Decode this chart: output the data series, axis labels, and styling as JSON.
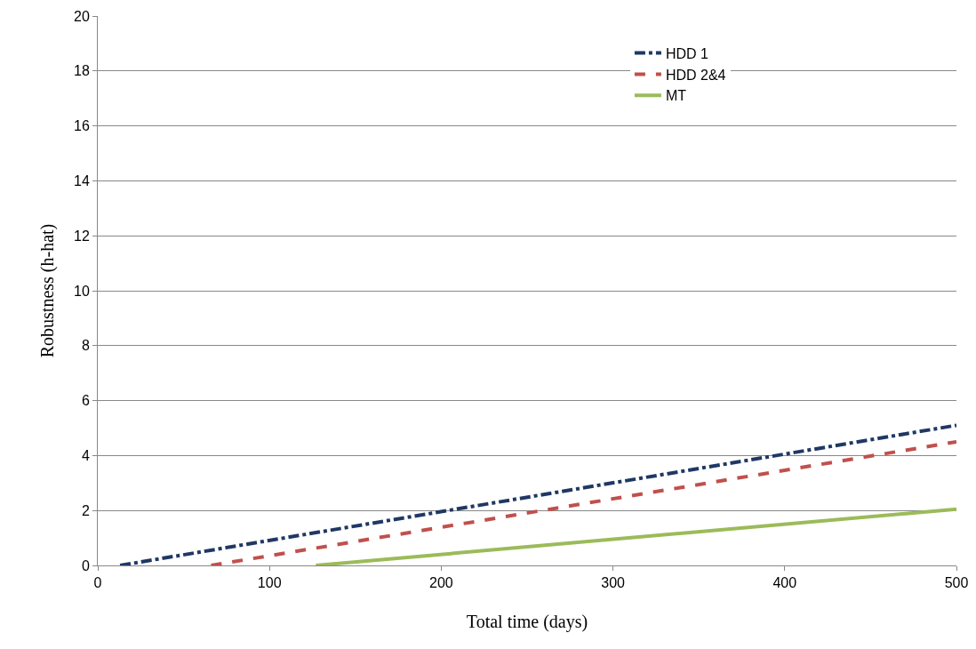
{
  "chart_data": {
    "type": "line",
    "xlabel": "Total time (days)",
    "ylabel": "Robustness (h-hat)",
    "xlim": [
      0,
      500
    ],
    "xticks": [
      0,
      100,
      200,
      300,
      400,
      500
    ],
    "ylim": [
      0,
      20
    ],
    "yticks": [
      0,
      2,
      4,
      6,
      8,
      10,
      12,
      14,
      16,
      18,
      20
    ],
    "grid": "y",
    "legend": "top right",
    "marker": "none",
    "series": [
      {
        "name": "HDD 1",
        "color": "#1f3864",
        "line_style": "dashdot",
        "x": [
          13,
          500
        ],
        "values": [
          0,
          5.1
        ]
      },
      {
        "name": "HDD 2&4",
        "color": "#c0504d",
        "line_style": "dashed",
        "x": [
          66,
          500
        ],
        "values": [
          0,
          4.5
        ]
      },
      {
        "name": "MT",
        "color": "#9bbb59",
        "line_style": "solid",
        "x": [
          127,
          500
        ],
        "values": [
          0,
          2.05
        ]
      }
    ]
  }
}
